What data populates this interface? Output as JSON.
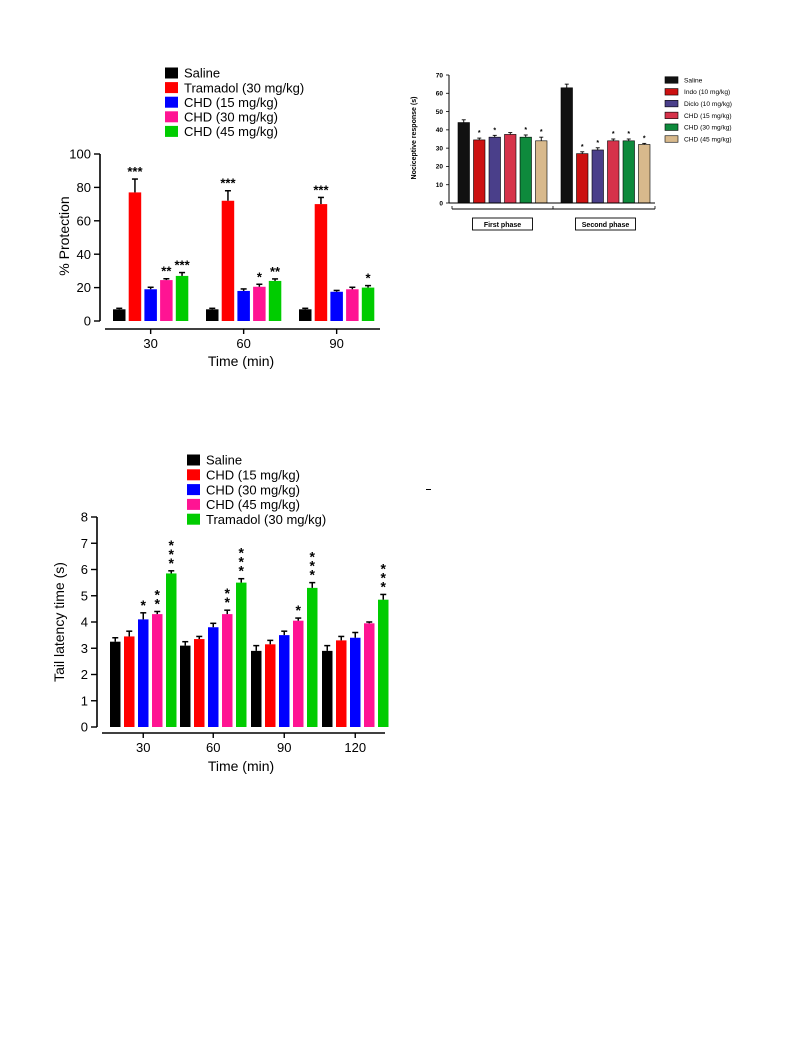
{
  "chart_data": [
    {
      "type": "bar",
      "xlabel": "Time (min)",
      "ylabel": "% Protection",
      "ylim": [
        0,
        100
      ],
      "yticks": [
        "0",
        "20",
        "40",
        "60",
        "80",
        "100"
      ],
      "categories": [
        "30",
        "60",
        "90"
      ],
      "legend_position": "top",
      "series": [
        {
          "name": "Saline",
          "color": "#000000",
          "values": [
            7,
            7,
            7
          ],
          "errors": [
            0.6,
            0.6,
            0.6
          ],
          "sig": [
            "",
            "",
            ""
          ]
        },
        {
          "name": "Tramadol (30 mg/kg)",
          "color": "#ff0000",
          "values": [
            77,
            72,
            70
          ],
          "errors": [
            8,
            6,
            4
          ],
          "sig": [
            "***",
            "***",
            "***"
          ]
        },
        {
          "name": "CHD (15 mg/kg)",
          "color": "#0000ff",
          "values": [
            19,
            18,
            17.5
          ],
          "errors": [
            1.2,
            1.2,
            0.8
          ],
          "sig": [
            "",
            "",
            ""
          ]
        },
        {
          "name": "CHD (30 mg/kg)",
          "color": "#ff1493",
          "values": [
            24.5,
            20.5,
            19
          ],
          "errors": [
            0.8,
            1.5,
            1.2
          ],
          "sig": [
            "**",
            "*",
            ""
          ]
        },
        {
          "name": "CHD (45 mg/kg)",
          "color": "#00cc00",
          "values": [
            27,
            24,
            20
          ],
          "errors": [
            2,
            1.2,
            1.2
          ],
          "sig": [
            "***",
            "**",
            "*"
          ]
        }
      ]
    },
    {
      "type": "bar",
      "xlabel": "",
      "ylabel": "Nociceptive response (s)",
      "ylim": [
        0,
        70
      ],
      "yticks": [
        "0",
        "10",
        "20",
        "30",
        "40",
        "50",
        "60",
        "70"
      ],
      "categories": [
        "First phase",
        "Second phase"
      ],
      "legend_position": "right",
      "series": [
        {
          "name": "Saline",
          "color": "#111111",
          "values": [
            44,
            63
          ],
          "errors": [
            1.5,
            2
          ],
          "sig": [
            "",
            ""
          ]
        },
        {
          "name": "Indo (10 mg/kg)",
          "color": "#cc1111",
          "values": [
            34.5,
            27
          ],
          "errors": [
            1,
            1
          ],
          "sig": [
            "*",
            "*"
          ]
        },
        {
          "name": "Diclo (10 mg/kg)",
          "color": "#4a3f8a",
          "values": [
            36,
            29
          ],
          "errors": [
            1,
            1.2
          ],
          "sig": [
            "*",
            "*"
          ]
        },
        {
          "name": "CHD (15 mg/kg)",
          "color": "#d6324a",
          "values": [
            37.5,
            34
          ],
          "errors": [
            1,
            1
          ],
          "sig": [
            "",
            "*"
          ]
        },
        {
          "name": "CHD (30 mg/kg)",
          "color": "#0e8a3c",
          "values": [
            36,
            34
          ],
          "errors": [
            1.2,
            1
          ],
          "sig": [
            "*",
            "*"
          ]
        },
        {
          "name": "CHD (45 mg/kg)",
          "color": "#d8b98c",
          "values": [
            34,
            32
          ],
          "errors": [
            2,
            0.6
          ],
          "sig": [
            "*",
            "*"
          ]
        }
      ]
    },
    {
      "type": "bar",
      "xlabel": "Time (min)",
      "ylabel": "Tail latency time (s)",
      "ylim": [
        0,
        8
      ],
      "yticks": [
        "0",
        "1",
        "2",
        "3",
        "4",
        "5",
        "6",
        "7",
        "8"
      ],
      "categories": [
        "30",
        "60",
        "90",
        "120"
      ],
      "legend_position": "top",
      "series": [
        {
          "name": "Saline",
          "color": "#000000",
          "values": [
            3.25,
            3.1,
            2.9,
            2.9
          ],
          "errors": [
            0.15,
            0.15,
            0.2,
            0.2
          ],
          "sig": [
            "",
            "",
            "",
            ""
          ]
        },
        {
          "name": "CHD (15 mg/kg)",
          "color": "#ff0000",
          "values": [
            3.45,
            3.35,
            3.15,
            3.3
          ],
          "errors": [
            0.2,
            0.1,
            0.15,
            0.15
          ],
          "sig": [
            "",
            "",
            "",
            ""
          ]
        },
        {
          "name": "CHD (30 mg/kg)",
          "color": "#0000ff",
          "values": [
            4.1,
            3.8,
            3.5,
            3.4
          ],
          "errors": [
            0.25,
            0.15,
            0.15,
            0.2
          ],
          "sig": [
            "*",
            "",
            "",
            ""
          ]
        },
        {
          "name": "CHD (45 mg/kg)",
          "color": "#ff1493",
          "values": [
            4.3,
            4.3,
            4.05,
            3.95
          ],
          "errors": [
            0.1,
            0.15,
            0.1,
            0.05
          ],
          "sig": [
            "**",
            "**",
            "*",
            ""
          ]
        },
        {
          "name": "Tramadol (30 mg/kg)",
          "color": "#00cc00",
          "values": [
            5.85,
            5.5,
            5.3,
            4.85
          ],
          "errors": [
            0.1,
            0.15,
            0.2,
            0.2
          ],
          "sig": [
            "***",
            "***",
            "***",
            "***"
          ]
        }
      ]
    }
  ]
}
